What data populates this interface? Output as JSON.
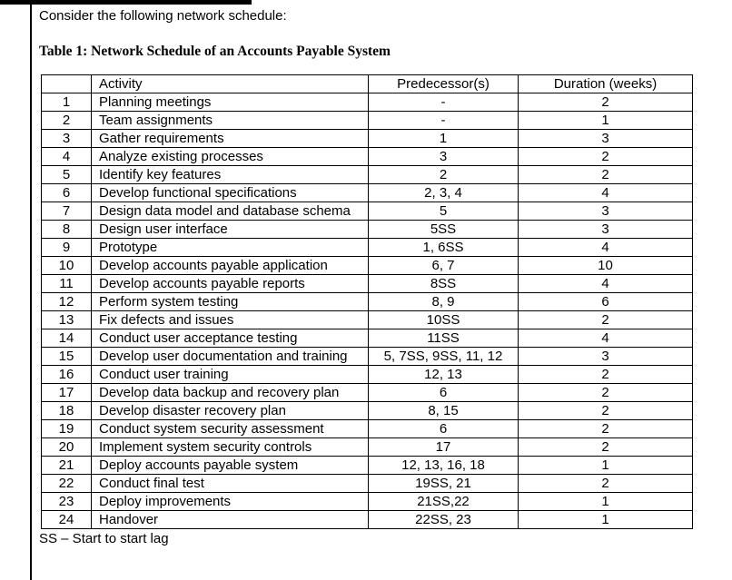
{
  "page": {
    "intro": "Consider the following network schedule:",
    "table_title": "Table 1: Network Schedule of an Accounts Payable System",
    "footnote": "SS – Start to start lag"
  },
  "table": {
    "headers": [
      "",
      "Activity",
      "Predecessor(s)",
      "Duration (weeks)"
    ],
    "rows": [
      {
        "num": "1",
        "activity": "Planning meetings",
        "predecessors": "-",
        "duration": "2"
      },
      {
        "num": "2",
        "activity": "Team assignments",
        "predecessors": "-",
        "duration": "1"
      },
      {
        "num": "3",
        "activity": "Gather requirements",
        "predecessors": "1",
        "duration": "3"
      },
      {
        "num": "4",
        "activity": "Analyze existing processes",
        "predecessors": "3",
        "duration": "2"
      },
      {
        "num": "5",
        "activity": "Identify key features",
        "predecessors": "2",
        "duration": "2"
      },
      {
        "num": "6",
        "activity": "Develop functional specifications",
        "predecessors": "2, 3, 4",
        "duration": "4"
      },
      {
        "num": "7",
        "activity": "Design data model and database schema",
        "predecessors": "5",
        "duration": "3"
      },
      {
        "num": "8",
        "activity": "Design user interface",
        "predecessors": "5SS",
        "duration": "3"
      },
      {
        "num": "9",
        "activity": "Prototype",
        "predecessors": "1, 6SS",
        "duration": "4"
      },
      {
        "num": "10",
        "activity": "Develop accounts payable application",
        "predecessors": "6, 7",
        "duration": "10"
      },
      {
        "num": "11",
        "activity": "Develop accounts payable reports",
        "predecessors": "8SS",
        "duration": "4"
      },
      {
        "num": "12",
        "activity": "Perform system testing",
        "predecessors": "8, 9",
        "duration": "6"
      },
      {
        "num": "13",
        "activity": "Fix defects and issues",
        "predecessors": "10SS",
        "duration": "2"
      },
      {
        "num": "14",
        "activity": "Conduct user acceptance testing",
        "predecessors": "11SS",
        "duration": "4"
      },
      {
        "num": "15",
        "activity": "Develop user documentation and training",
        "predecessors": "5, 7SS, 9SS, 11, 12",
        "duration": "3"
      },
      {
        "num": "16",
        "activity": "Conduct user training",
        "predecessors": "12, 13",
        "duration": "2"
      },
      {
        "num": "17",
        "activity": "Develop data backup and recovery plan",
        "predecessors": "6",
        "duration": "2"
      },
      {
        "num": "18",
        "activity": "Develop disaster recovery plan",
        "predecessors": "8, 15",
        "duration": "2"
      },
      {
        "num": "19",
        "activity": "Conduct system security assessment",
        "predecessors": "6",
        "duration": "2"
      },
      {
        "num": "20",
        "activity": "Implement system security controls",
        "predecessors": "17",
        "duration": "2"
      },
      {
        "num": "21",
        "activity": "Deploy accounts payable system",
        "predecessors": "12, 13, 16, 18",
        "duration": "1"
      },
      {
        "num": "22",
        "activity": "Conduct final test",
        "predecessors": "19SS, 21",
        "duration": "2"
      },
      {
        "num": "23",
        "activity": "Deploy improvements",
        "predecessors": "21SS,22",
        "duration": "1"
      },
      {
        "num": "24",
        "activity": "Handover",
        "predecessors": "22SS, 23",
        "duration": "1"
      }
    ]
  }
}
